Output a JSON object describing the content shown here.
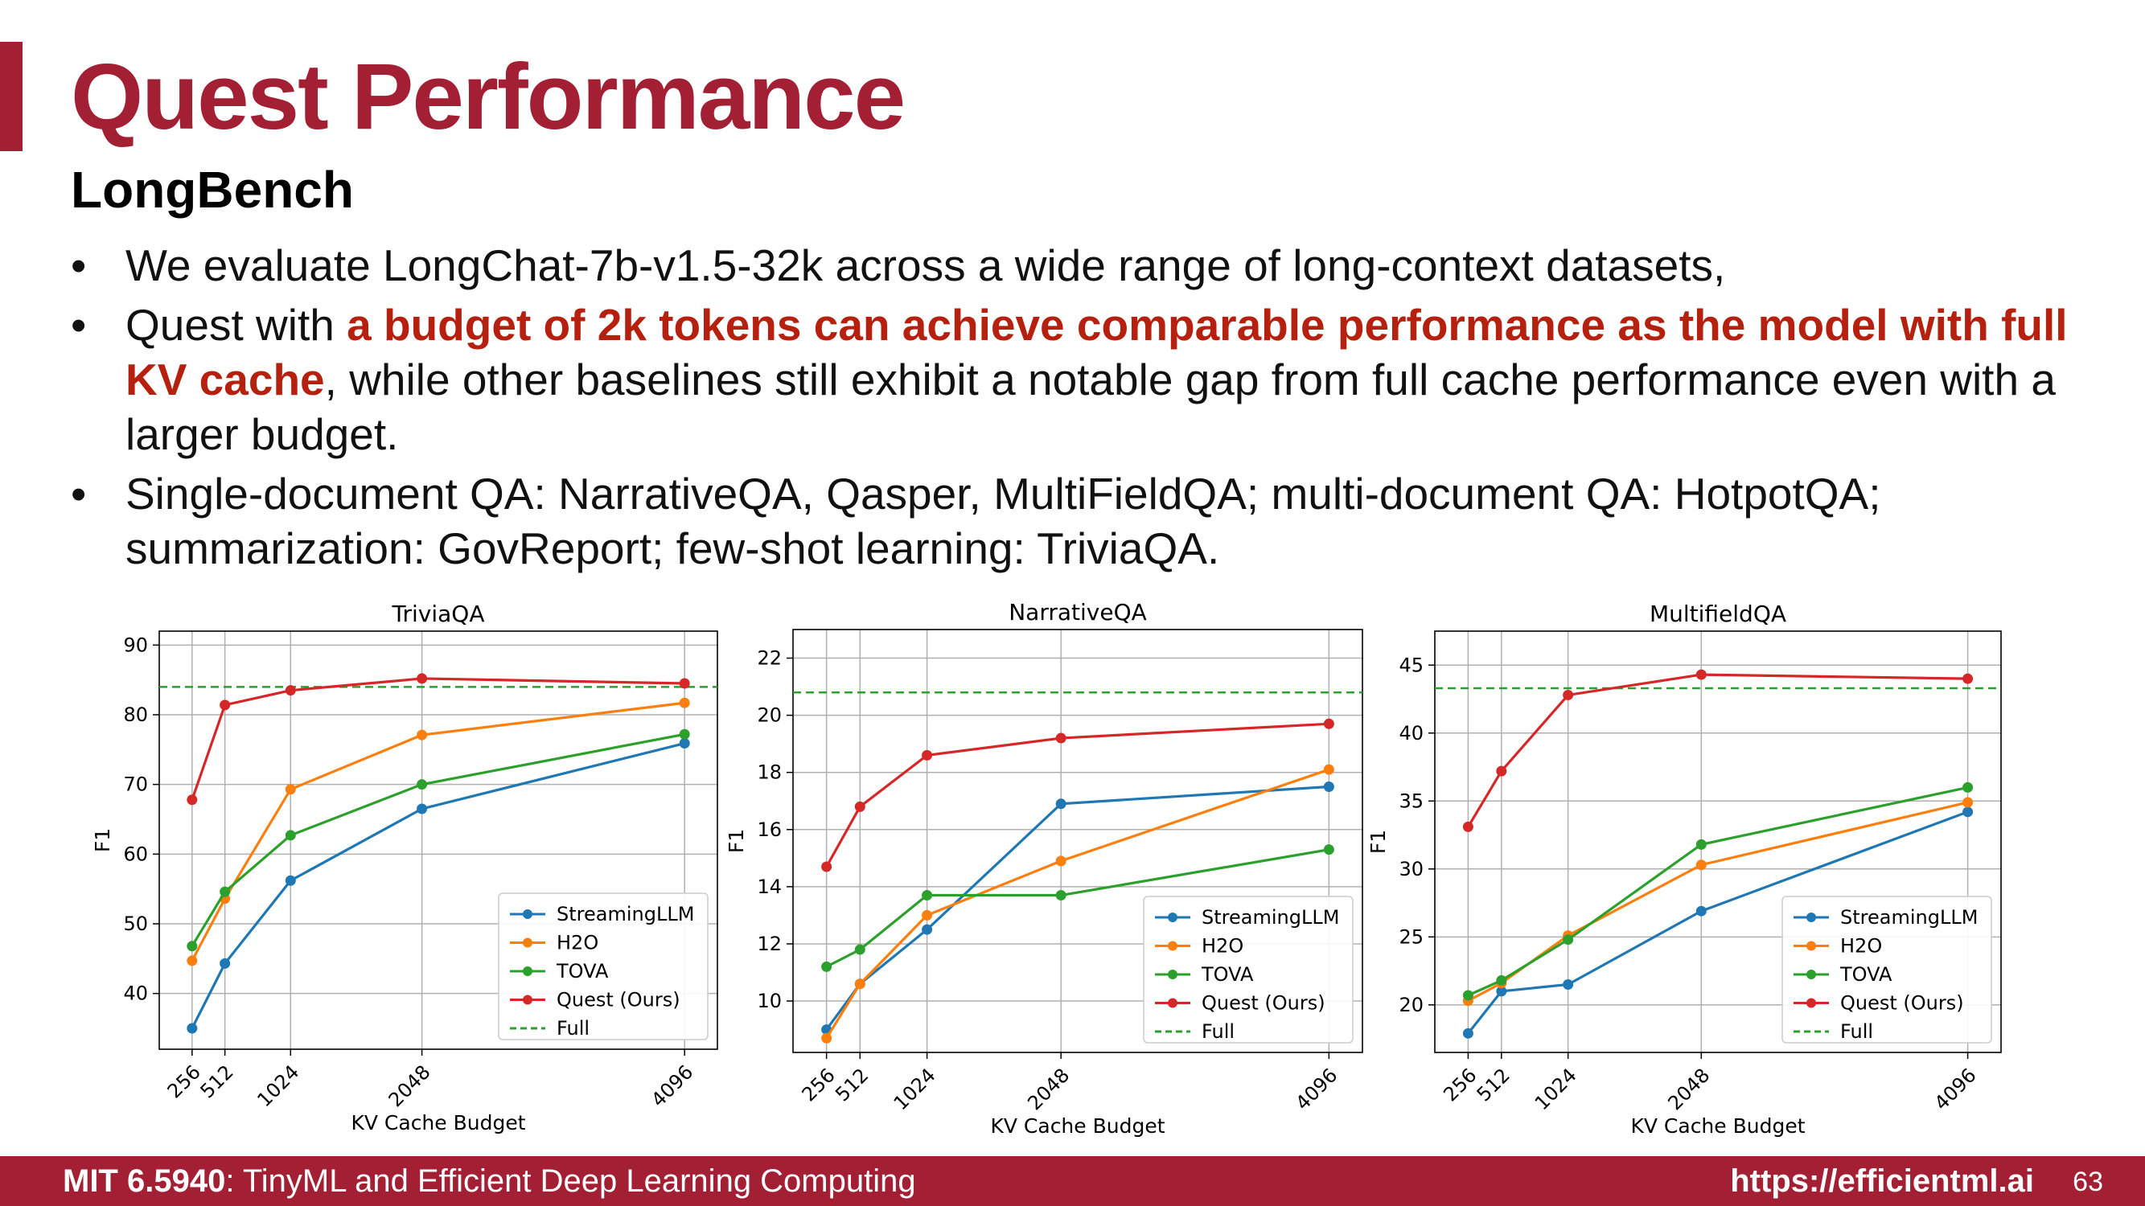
{
  "slide": {
    "title": "Quest Performance",
    "subtitle": "LongBench",
    "bullets": [
      {
        "text": "We evaluate LongChat-7b-v1.5-32k across a wide range of long-context datasets,"
      },
      {
        "pre": "Quest with ",
        "highlight": "a budget of 2k tokens can achieve comparable performance as the model with full KV cache",
        "post": ", while other baselines still exhibit a notable gap from full cache performance even with a larger budget."
      },
      {
        "text": "Single-document QA: NarrativeQA, Qasper, MultiFieldQA; multi-document QA: HotpotQA; summarization: GovReport; few-shot learning: TriviaQA."
      }
    ],
    "bullet_symbol": "•",
    "footer": {
      "course_code": "MIT 6.5940",
      "course_name": ": TinyML and Efficient Deep Learning Computing",
      "url": "https://efficientml.ai",
      "page": "63"
    }
  },
  "colors": {
    "accent": "#a31f34",
    "highlight": "#b5200f",
    "StreamingLLM": "#1f77b4",
    "H2O": "#ff7f0e",
    "TOVA": "#2ca02c",
    "Quest": "#d62728",
    "Full": "#2ca02c"
  },
  "chart_data": [
    {
      "type": "line",
      "title": "TriviaQA",
      "xlabel": "KV Cache Budget",
      "ylabel": "F1",
      "x": [
        256,
        512,
        1024,
        2048,
        4096
      ],
      "xticklabels": [
        "256",
        "512",
        "1024",
        "2048",
        "4096"
      ],
      "ylim": [
        32,
        92
      ],
      "yticks": [
        40,
        50,
        60,
        70,
        80,
        90
      ],
      "grid": true,
      "legend_position": "lower-right",
      "series": [
        {
          "name": "StreamingLLM",
          "values": [
            35.0,
            44.3,
            56.2,
            66.5,
            75.9
          ]
        },
        {
          "name": "H2O",
          "values": [
            44.7,
            53.6,
            69.3,
            77.1,
            81.7
          ]
        },
        {
          "name": "TOVA",
          "values": [
            46.8,
            54.6,
            62.7,
            70.0,
            77.2
          ]
        },
        {
          "name": "Quest (Ours)",
          "values": [
            67.8,
            81.4,
            83.5,
            85.2,
            84.5
          ]
        }
      ],
      "full": {
        "name": "Full",
        "value": 84.0
      }
    },
    {
      "type": "line",
      "title": "NarrativeQA",
      "xlabel": "KV Cache Budget",
      "ylabel": "F1",
      "x": [
        256,
        512,
        1024,
        2048,
        4096
      ],
      "xticklabels": [
        "256",
        "512",
        "1024",
        "2048",
        "4096"
      ],
      "ylim": [
        8.2,
        23.0
      ],
      "yticks": [
        10,
        12,
        14,
        16,
        18,
        20,
        22
      ],
      "grid": true,
      "legend_position": "lower-right",
      "series": [
        {
          "name": "StreamingLLM",
          "values": [
            9.0,
            10.6,
            12.5,
            16.9,
            17.5
          ]
        },
        {
          "name": "H2O",
          "values": [
            8.7,
            10.6,
            13.0,
            14.9,
            18.1
          ]
        },
        {
          "name": "TOVA",
          "values": [
            11.2,
            11.8,
            13.7,
            13.7,
            15.3
          ]
        },
        {
          "name": "Quest (Ours)",
          "values": [
            14.7,
            16.8,
            18.6,
            19.2,
            19.7
          ]
        }
      ],
      "full": {
        "name": "Full",
        "value": 20.8
      }
    },
    {
      "type": "line",
      "title": "MultifieldQA",
      "xlabel": "KV Cache Budget",
      "ylabel": "F1",
      "x": [
        256,
        512,
        1024,
        2048,
        4096
      ],
      "xticklabels": [
        "256",
        "512",
        "1024",
        "2048",
        "4096"
      ],
      "ylim": [
        16.5,
        47.5
      ],
      "yticks": [
        20,
        25,
        30,
        35,
        40,
        45
      ],
      "grid": true,
      "legend_position": "lower-right",
      "series": [
        {
          "name": "StreamingLLM",
          "values": [
            17.9,
            21.0,
            21.5,
            26.9,
            34.2
          ]
        },
        {
          "name": "H2O",
          "values": [
            20.3,
            21.6,
            25.1,
            30.3,
            34.9
          ]
        },
        {
          "name": "TOVA",
          "values": [
            20.7,
            21.8,
            24.8,
            31.8,
            36.0
          ]
        },
        {
          "name": "Quest (Ours)",
          "values": [
            33.1,
            37.2,
            42.8,
            44.3,
            44.0
          ]
        }
      ],
      "full": {
        "name": "Full",
        "value": 43.3
      }
    }
  ]
}
